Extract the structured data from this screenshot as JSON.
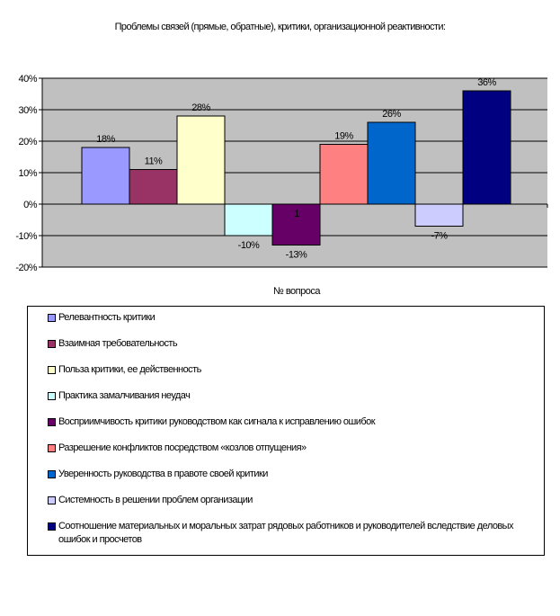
{
  "chart_data": {
    "type": "bar",
    "title": "Проблемы связей (прямые, обратные), критики, организационной реактивности:",
    "xlabel": "№ вопроса",
    "ylabel": "",
    "ylim": [
      -20,
      40
    ],
    "yticks": [
      "40%",
      "30%",
      "20%",
      "10%",
      "0%",
      "-10%",
      "-20%"
    ],
    "ytick_values": [
      40,
      30,
      20,
      10,
      0,
      -10,
      -20
    ],
    "category_tick": "1",
    "plot_background": "#c0c0c0",
    "grid": true,
    "legend_position": "bottom",
    "series": [
      {
        "name": "Релевантность критики",
        "value": 18,
        "label": "18%",
        "color": "#9999ff"
      },
      {
        "name": "Взаимная требовательность",
        "value": 11,
        "label": "11%",
        "color": "#993366"
      },
      {
        "name": "Польза критики, ее действенность",
        "value": 28,
        "label": "28%",
        "color": "#ffffcc"
      },
      {
        "name": "Практика замалчивания неудач",
        "value": -10,
        "label": "-10%",
        "color": "#ccffff"
      },
      {
        "name": "Восприимчивость критики руководством как сигнала к исправлению ошибок",
        "value": -13,
        "label": "-13%",
        "color": "#660066"
      },
      {
        "name": "Разрешение конфликтов посредством «козлов отпущения»",
        "value": 19,
        "label": "19%",
        "color": "#ff8080"
      },
      {
        "name": "Уверенность руководства в правоте своей критики",
        "value": 26,
        "label": "26%",
        "color": "#0066cc"
      },
      {
        "name": "Системность в решении проблем организации",
        "value": -7,
        "label": "-7%",
        "color": "#ccccff"
      },
      {
        "name": "Соотношение материальных и моральных затрат рядовых работников и руководителей вследствие деловых ошибок и просчетов",
        "value": 36,
        "label": "36%",
        "color": "#000080"
      }
    ]
  }
}
